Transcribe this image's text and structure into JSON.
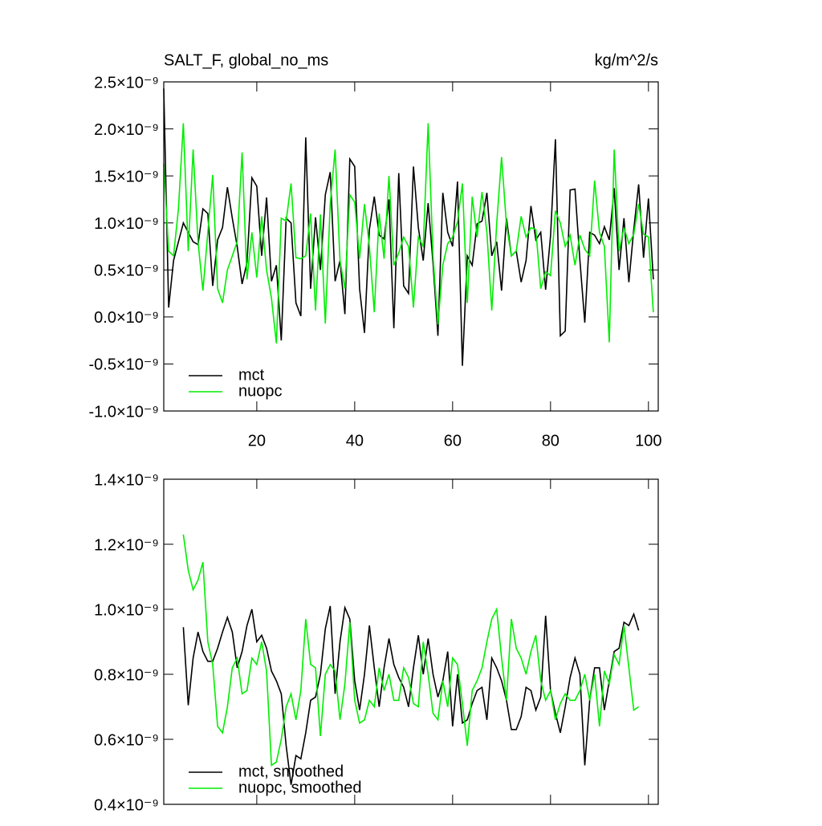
{
  "chart_data": [
    {
      "type": "line",
      "title": "SALT_F, global_no_ms",
      "units": "kg/m^2/s",
      "xlim": [
        1,
        102
      ],
      "xticks": [
        20,
        40,
        60,
        80,
        100
      ],
      "ylim": [
        -1e-09,
        2.5e-09
      ],
      "yticks": [
        {
          "value": -1e-09,
          "label": "-1.0×10⁻⁹"
        },
        {
          "value": -5e-10,
          "label": "-0.5×10⁻⁹"
        },
        {
          "value": 0,
          "label": "0.0×10⁻⁹"
        },
        {
          "value": 5e-10,
          "label": "0.5×10⁻⁹"
        },
        {
          "value": 1e-09,
          "label": "1.0×10⁻⁹"
        },
        {
          "value": 1.5e-09,
          "label": "1.5×10⁻⁹"
        },
        {
          "value": 2e-09,
          "label": "2.0×10⁻⁹"
        },
        {
          "value": 2.5e-09,
          "label": "2.5×10⁻⁹"
        }
      ],
      "x": [
        1,
        2,
        3,
        4,
        5,
        6,
        7,
        8,
        9,
        10,
        11,
        12,
        13,
        14,
        15,
        16,
        17,
        18,
        19,
        20,
        21,
        22,
        23,
        24,
        25,
        26,
        27,
        28,
        29,
        30,
        31,
        32,
        33,
        34,
        35,
        36,
        37,
        38,
        39,
        40,
        41,
        42,
        43,
        44,
        45,
        46,
        47,
        48,
        49,
        50,
        51,
        52,
        53,
        54,
        55,
        56,
        57,
        58,
        59,
        60,
        61,
        62,
        63,
        64,
        65,
        66,
        67,
        68,
        69,
        70,
        71,
        72,
        73,
        74,
        75,
        76,
        77,
        78,
        79,
        80,
        81,
        82,
        83,
        84,
        85,
        86,
        87,
        88,
        89,
        90,
        91,
        92,
        93,
        94,
        95,
        96,
        97,
        98,
        99,
        100,
        101
      ],
      "series": [
        {
          "name": "mct",
          "color": "#000000",
          "values": [
            2.43e-09,
            1e-10,
            6e-10,
            8e-10,
            1e-09,
            9e-10,
            8e-10,
            7.7e-10,
            1.15e-09,
            1.1e-09,
            3.3e-10,
            8.2e-10,
            9.5e-10,
            1.38e-09,
            1.05e-09,
            7.5e-10,
            3.5e-10,
            5.8e-10,
            1.48e-09,
            1.39e-09,
            6.5e-10,
            1.27e-09,
            3.8e-10,
            5.5e-10,
            -2.5e-10,
            1.05e-09,
            1e-09,
            1.5e-10,
            1e-11,
            1.91e-09,
            3e-10,
            1.06e-09,
            5e-10,
            1.3e-09,
            1.54e-09,
            3.8e-10,
            6e-10,
            3e-11,
            1.68e-09,
            1.6e-09,
            3e-10,
            -1.7e-10,
            9.3e-10,
            1.28e-09,
            8.7e-10,
            8.3e-10,
            1.25e-09,
            -1.2e-10,
            1.53e-09,
            3.3e-10,
            2.5e-10,
            1.6e-09,
            9.5e-10,
            6e-10,
            1.21e-09,
            5.7e-10,
            -2e-10,
            1.32e-09,
            9e-10,
            7.5e-10,
            1.44e-09,
            -5.2e-10,
            6.5e-10,
            5.5e-10,
            9.9e-10,
            1.02e-09,
            1.32e-09,
            6.5e-10,
            8e-10,
            2.8e-10,
            1.05e-09,
            6.5e-10,
            7e-10,
            3.7e-10,
            6e-10,
            1.18e-09,
            8.2e-10,
            9e-10,
            2.9e-10,
            8.6e-10,
            1.89e-09,
            -2e-10,
            -1.5e-10,
            1.35e-09,
            1.36e-09,
            6e-10,
            -6e-11,
            9e-10,
            8.7e-10,
            7.8e-10,
            9.6e-10,
            8.2e-10,
            1.37e-09,
            5e-10,
            1.05e-09,
            3.7e-10,
            9.3e-10,
            1.41e-09,
            6.3e-10,
            1.26e-09,
            4e-10
          ]
        },
        {
          "name": "nuopc",
          "color": "#00ee00",
          "values": [
            1.63e-09,
            7e-10,
            6.5e-10,
            1.15e-09,
            2.06e-09,
            7e-10,
            1.78e-09,
            8e-10,
            2.8e-10,
            9e-10,
            1.51e-09,
            3e-10,
            1.5e-10,
            5e-10,
            6.5e-10,
            8e-10,
            1.75e-09,
            4e-10,
            9e-10,
            4.2e-10,
            1.07e-09,
            5e-10,
            2e-10,
            -2.8e-10,
            1.05e-09,
            1.02e-09,
            1.42e-09,
            6.3e-10,
            6.2e-10,
            6.5e-10,
            1.1e-09,
            7e-11,
            1.09e-09,
            -7e-11,
            1.2e-09,
            1.78e-09,
            6e-10,
            3e-10,
            1.3e-09,
            1.22e-09,
            6.2e-10,
            1.2e-09,
            7.5e-10,
            5e-11,
            1.1e-09,
            6.2e-10,
            1.5e-09,
            5.5e-10,
            6.8e-10,
            8.5e-10,
            7.5e-10,
            1e-10,
            8.5e-10,
            7.5e-10,
            2.06e-09,
            6.5e-10,
            -8e-11,
            5.5e-10,
            7.8e-10,
            8.5e-10,
            1.01e-09,
            1.42e-09,
            1.5e-10,
            1.28e-09,
            8.5e-10,
            1.33e-09,
            9e-10,
            7e-11,
            9.9e-10,
            1.7e-09,
            9.8e-10,
            6.5e-10,
            7e-10,
            1.07e-09,
            8.5e-10,
            9.5e-10,
            9.3e-10,
            3e-10,
            4.8e-10,
            4.4e-10,
            1.13e-09,
            1e-09,
            7.5e-10,
            8.7e-10,
            5.5e-10,
            8.7e-10,
            7.2e-10,
            6.5e-10,
            1.45e-09,
            9e-10,
            7.5e-10,
            -2.7e-10,
            1.78e-09,
            7e-10,
            9.5e-10,
            7.8e-10,
            8.8e-10,
            1.2e-09,
            8.8e-10,
            8.5e-10,
            5e-11
          ]
        }
      ]
    },
    {
      "type": "line",
      "xlim": [
        1,
        102
      ],
      "xticks": [
        20,
        40,
        60,
        80,
        100
      ],
      "ylim": [
        4e-10,
        1.4e-09
      ],
      "yticks": [
        {
          "value": 4e-10,
          "label": "0.4×10⁻⁹"
        },
        {
          "value": 6e-10,
          "label": "0.6×10⁻⁹"
        },
        {
          "value": 8e-10,
          "label": "0.8×10⁻⁹"
        },
        {
          "value": 1e-09,
          "label": "1.0×10⁻⁹"
        },
        {
          "value": 1.2e-09,
          "label": "1.2×10⁻⁹"
        },
        {
          "value": 1.4e-09,
          "label": "1.4×10⁻⁹"
        }
      ],
      "x": [
        5,
        6,
        7,
        8,
        9,
        10,
        11,
        12,
        13,
        14,
        15,
        16,
        17,
        18,
        19,
        20,
        21,
        22,
        23,
        24,
        25,
        26,
        27,
        28,
        29,
        30,
        31,
        32,
        33,
        34,
        35,
        36,
        37,
        38,
        39,
        40,
        41,
        42,
        43,
        44,
        45,
        46,
        47,
        48,
        49,
        50,
        51,
        52,
        53,
        54,
        55,
        56,
        57,
        58,
        59,
        60,
        61,
        62,
        63,
        64,
        65,
        66,
        67,
        68,
        69,
        70,
        71,
        72,
        73,
        74,
        75,
        76,
        77,
        78,
        79,
        80,
        81,
        82,
        83,
        84,
        85,
        86,
        87,
        88,
        89,
        90,
        91,
        92,
        93,
        94,
        95,
        96,
        97,
        98
      ],
      "series": [
        {
          "name": "mct, smoothed",
          "color": "#000000",
          "values": [
            9.45e-10,
            7.05e-10,
            8.5e-10,
            9.3e-10,
            8.7e-10,
            8.4e-10,
            8.4e-10,
            8.8e-10,
            9.3e-10,
            9.75e-10,
            9.3e-10,
            8.2e-10,
            8.7e-10,
            9.5e-10,
            1e-09,
            9e-10,
            9.2e-10,
            8.8e-10,
            8.1e-10,
            7.8e-10,
            7.4e-10,
            5.8e-10,
            4.6e-10,
            5.5e-10,
            5.4e-10,
            6.2e-10,
            7.2e-10,
            7.3e-10,
            8e-10,
            9.4e-10,
            1.01e-09,
            7.4e-10,
            9e-10,
            1.005e-09,
            9.7e-10,
            7.8e-10,
            6.9e-10,
            8e-10,
            9.5e-10,
            8.2e-10,
            7e-10,
            8.2e-10,
            9.1e-10,
            8.3e-10,
            7.9e-10,
            7.6e-10,
            7e-10,
            8.2e-10,
            9.2e-10,
            8e-10,
            9.1e-10,
            8e-10,
            7.3e-10,
            7.8e-10,
            8.7e-10,
            6.4e-10,
            8e-10,
            6.5e-10,
            6.6e-10,
            7.1e-10,
            7.5e-10,
            7.6e-10,
            6.6e-10,
            8.5e-10,
            8.2e-10,
            7.8e-10,
            7.2e-10,
            6.3e-10,
            6.3e-10,
            6.7e-10,
            7.6e-10,
            7.5e-10,
            6.9e-10,
            7.3e-10,
            9.8e-10,
            7.5e-10,
            6.8e-10,
            6.2e-10,
            7e-10,
            7.9e-10,
            8.5e-10,
            8e-10,
            5.2e-10,
            7.2e-10,
            8.2e-10,
            8.2e-10,
            6.9e-10,
            7.8e-10,
            8.7e-10,
            8.8e-10,
            9.6e-10,
            9.5e-10,
            9.85e-10,
            9.35e-10
          ]
        },
        {
          "name": "nuopc, smoothed",
          "color": "#00ee00",
          "values": [
            1.23e-09,
            1.12e-09,
            1.06e-09,
            1.09e-09,
            1.145e-09,
            9e-10,
            8.3e-10,
            6.4e-10,
            6.2e-10,
            7e-10,
            8.2e-10,
            8.5e-10,
            7.4e-10,
            7.5e-10,
            8.5e-10,
            8.3e-10,
            9e-10,
            8.1e-10,
            5.2e-10,
            5.3e-10,
            6e-10,
            7e-10,
            7.4e-10,
            6.6e-10,
            7.5e-10,
            9.7e-10,
            8.3e-10,
            8.2e-10,
            6.1e-10,
            8e-10,
            8.3e-10,
            8.1e-10,
            6.6e-10,
            7.7e-10,
            9.6e-10,
            7.2e-10,
            6.5e-10,
            6.6e-10,
            7.2e-10,
            7e-10,
            8.2e-10,
            7.5e-10,
            8e-10,
            7.2e-10,
            7.2e-10,
            8.2e-10,
            7.9e-10,
            7.1e-10,
            7e-10,
            9e-10,
            8e-10,
            6.8e-10,
            6.6e-10,
            7.8e-10,
            7e-10,
            8.5e-10,
            8.3e-10,
            7.1e-10,
            5.8e-10,
            7.5e-10,
            7.8e-10,
            8.2e-10,
            9e-10,
            9.7e-10,
            1e-09,
            8.5e-10,
            7.2e-10,
            9.7e-10,
            8.8e-10,
            8.5e-10,
            8e-10,
            8.7e-10,
            9.2e-10,
            7.8e-10,
            7.2e-10,
            7.5e-10,
            6.6e-10,
            7.1e-10,
            7.4e-10,
            7.2e-10,
            7.2e-10,
            7.5e-10,
            8e-10,
            7.2e-10,
            8e-10,
            6.4e-10,
            8.1e-10,
            7.7e-10,
            8.6e-10,
            8.3e-10,
            9.5e-10,
            8.2e-10,
            6.9e-10,
            7e-10
          ]
        }
      ]
    }
  ]
}
